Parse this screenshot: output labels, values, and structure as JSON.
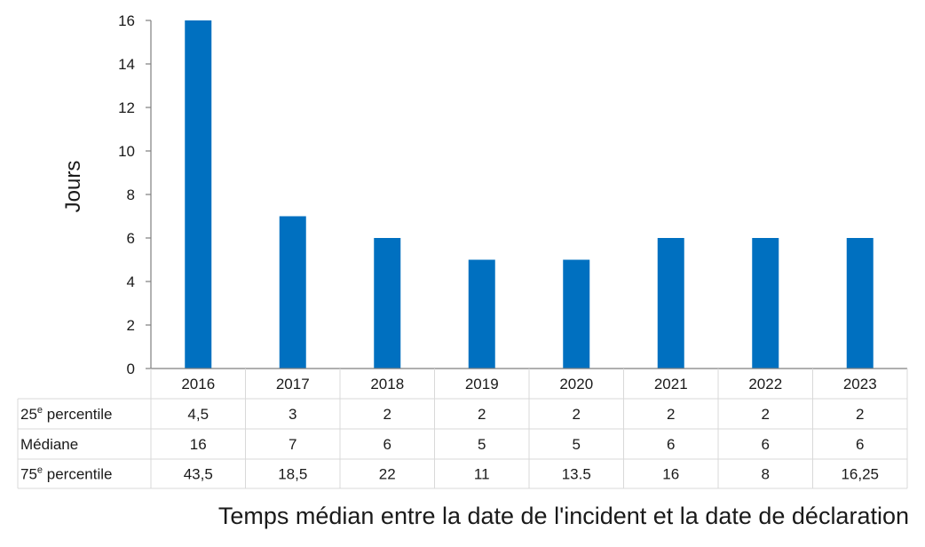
{
  "chart_data": {
    "type": "bar",
    "title": "",
    "xlabel": "Temps médian entre la date de l'incident et la date de déclaration",
    "ylabel": "Jours",
    "ylim": [
      0,
      16
    ],
    "yticks": [
      "0",
      "2",
      "4",
      "6",
      "8",
      "10",
      "12",
      "14",
      "16"
    ],
    "categories": [
      "2016",
      "2017",
      "2018",
      "2019",
      "2020",
      "2021",
      "2022",
      "2023"
    ],
    "values": [
      16,
      7,
      6,
      5,
      5,
      6,
      6,
      6
    ],
    "bar_color": "#0070C0",
    "grid": false,
    "table": {
      "rows": [
        {
          "label_main": "25",
          "label_sup": "e",
          "label_rest": " percentile",
          "values": [
            "4,5",
            "3",
            "2",
            "2",
            "2",
            "2",
            "2",
            "2"
          ]
        },
        {
          "label_main": "Médiane",
          "label_sup": "",
          "label_rest": "",
          "values": [
            "16",
            "7",
            "6",
            "5",
            "5",
            "6",
            "6",
            "6"
          ]
        },
        {
          "label_main": "75",
          "label_sup": "e",
          "label_rest": " percentile",
          "values": [
            "43,5",
            "18,5",
            "22",
            "11",
            "13.5",
            "16",
            "8",
            "16,25"
          ]
        }
      ]
    }
  }
}
